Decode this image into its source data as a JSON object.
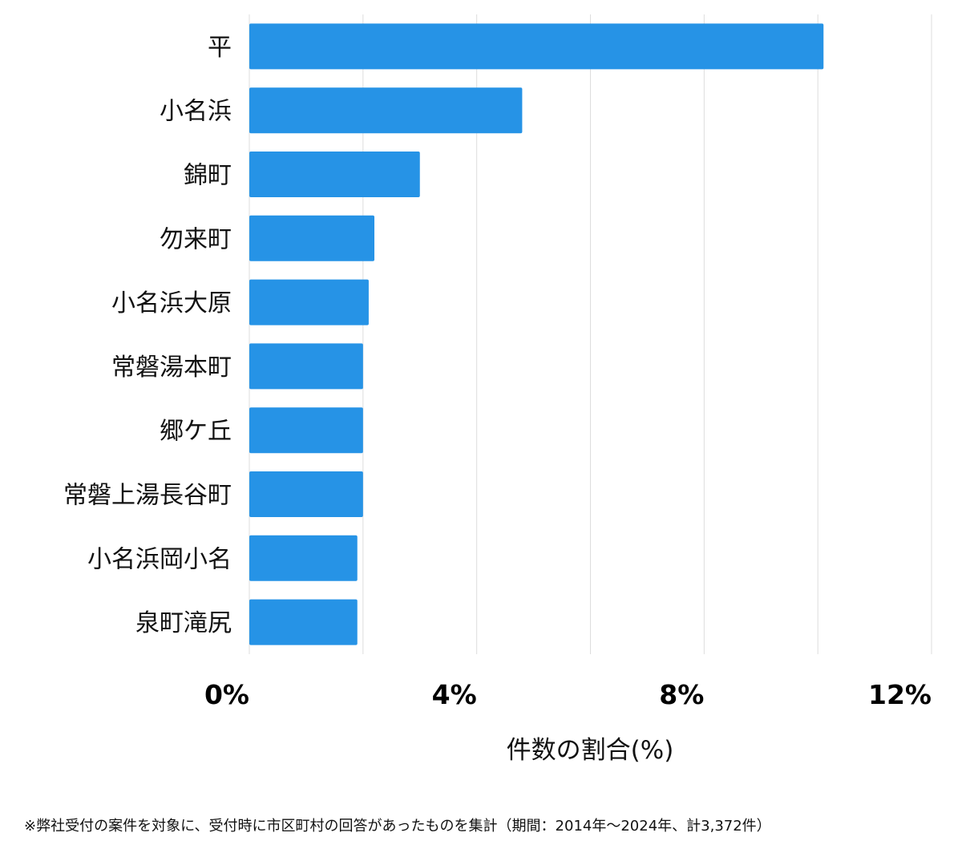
{
  "chart_data": {
    "type": "bar",
    "orientation": "horizontal",
    "categories": [
      "平",
      "小名浜",
      "錦町",
      "勿来町",
      "小名浜大原",
      "常磐湯本町",
      "郷ケ丘",
      "常磐上湯長谷町",
      "小名浜岡小名",
      "泉町滝尻"
    ],
    "values": [
      10.1,
      4.8,
      3.0,
      2.2,
      2.1,
      2.0,
      2.0,
      2.0,
      1.9,
      1.9
    ],
    "xlabel": "件数の割合(%)",
    "xlim": [
      0,
      12
    ],
    "xticks": [
      0,
      4,
      8,
      12
    ],
    "xtick_labels": [
      "0%",
      "4%",
      "8%",
      "12%"
    ],
    "grid": "vertical",
    "bar_color": "#2693e6",
    "grid_color": "#dddddd"
  },
  "footnote": "※弊社受付の案件を対象に、受付時に市区町村の回答があったものを集計（期間：2014年～2024年、計3,372件）"
}
